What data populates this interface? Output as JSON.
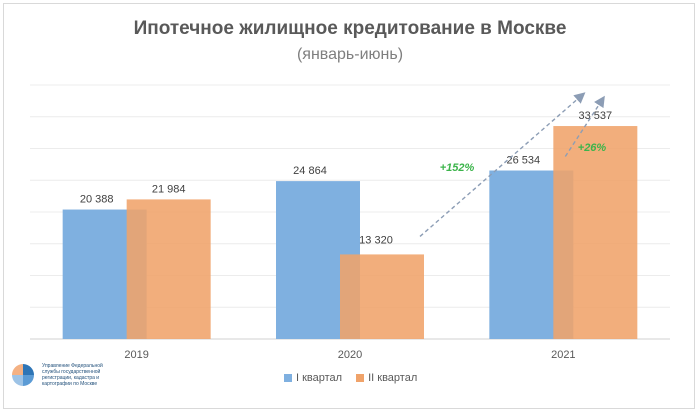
{
  "chart_data": {
    "type": "bar",
    "title": "Ипотечное жилищное кредитование в Москве",
    "subtitle": "(январь-июнь)",
    "categories": [
      "2019",
      "2020",
      "2021"
    ],
    "series": [
      {
        "name": "I квартал",
        "values": [
          20388,
          24864,
          26534
        ],
        "labels": [
          "20 388",
          "24 864",
          "26 534"
        ],
        "color": "#7fb0e0"
      },
      {
        "name": "II квартал",
        "values": [
          21984,
          13320,
          33537
        ],
        "labels": [
          "21 984",
          "13 320",
          "33 537"
        ],
        "color": "#f0a36a"
      }
    ],
    "ylim": [
      0,
      40000
    ],
    "grid": true,
    "legend": "bottom",
    "annotations": [
      {
        "text": "+152%",
        "color": "#3cb44b"
      },
      {
        "text": "+26%",
        "color": "#3cb44b"
      }
    ]
  },
  "logo": {
    "text": "Управление Федеральной службы государственной регистрации, кадастра и картографии по Москве"
  }
}
